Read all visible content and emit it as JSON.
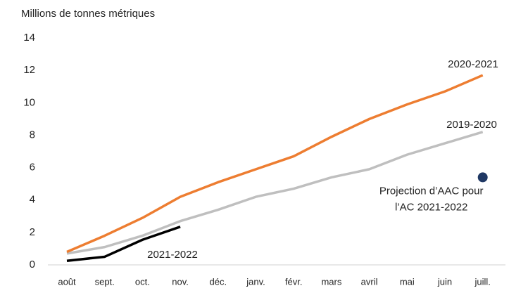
{
  "chart_data": {
    "type": "line",
    "y_label": "Millions de tonnes métriques",
    "categories": [
      "août",
      "sept.",
      "oct.",
      "nov.",
      "déc.",
      "janv.",
      "févr.",
      "mars",
      "avril",
      "mai",
      "juin",
      "juill."
    ],
    "series": [
      {
        "name": "2019-2020",
        "color": "#bfbfbf",
        "values": [
          0.7,
          1.1,
          1.8,
          2.7,
          3.4,
          4.2,
          4.7,
          5.4,
          5.9,
          6.8,
          7.5,
          8.2
        ]
      },
      {
        "name": "2020-2021",
        "color": "#ed7d31",
        "values": [
          0.8,
          1.8,
          2.9,
          4.2,
          5.1,
          5.9,
          6.7,
          7.9,
          9.0,
          9.9,
          10.7,
          11.7
        ]
      },
      {
        "name": "2021-2022",
        "color": "#000000",
        "values": [
          0.25,
          0.5,
          1.55,
          2.35,
          null,
          null,
          null,
          null,
          null,
          null,
          null,
          null
        ]
      }
    ],
    "points": [
      {
        "x": "juill.",
        "value": 5.4,
        "color": "#1f3864",
        "label_lines": [
          "Projection d’AAC pour",
          "l’AC 2021-2022"
        ]
      }
    ],
    "ylim": [
      0,
      14
    ],
    "yticks": [
      0,
      2,
      4,
      6,
      8,
      10,
      12,
      14
    ],
    "grid": false
  }
}
